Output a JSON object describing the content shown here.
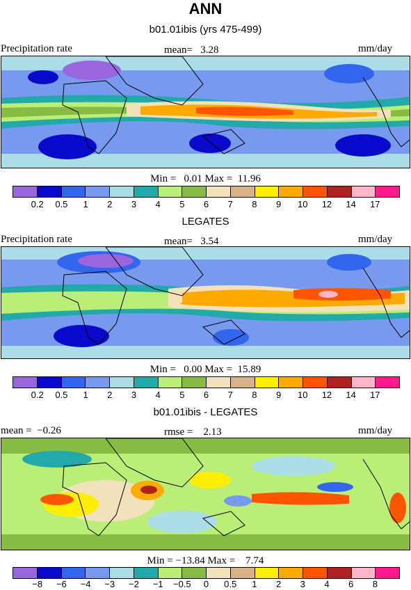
{
  "header": {
    "title": "ANN"
  },
  "palette": {
    "precip": [
      "#9966dd",
      "#0a0acc",
      "#3366ee",
      "#7799ee",
      "#aadde8",
      "#22aaaa",
      "#bbee77",
      "#88bb44",
      "#f2e2bb",
      "#d9b288",
      "#ffee00",
      "#ffaa00",
      "#ff5500",
      "#b02020",
      "#ffb6c8",
      "#ff1a8c"
    ],
    "diff": [
      "#9966dd",
      "#0a0acc",
      "#3366ee",
      "#7799ee",
      "#aadde8",
      "#22aaaa",
      "#bbee77",
      "#88bb44",
      "#f2e2bb",
      "#d9b288",
      "#ffee00",
      "#ffaa00",
      "#ff5500",
      "#b02020",
      "#ffb6c8",
      "#ff1a8c"
    ]
  },
  "panels": [
    {
      "subtitle": "b01.01ibis (yrs 475-499)",
      "left_label": "Precipitation rate",
      "center_label": "mean=   3.28",
      "right_label": "mm/day",
      "stats": "Min =   0.01 Max =  11.96",
      "ticks": [
        "0.2",
        "0.5",
        "1",
        "2",
        "3",
        "4",
        "5",
        "6",
        "7",
        "8",
        "9",
        "10",
        "12",
        "14",
        "17"
      ]
    },
    {
      "subtitle": "LEGATES",
      "left_label": "Precipitation rate",
      "center_label": "mean=   3.54",
      "right_label": "mm/day",
      "stats": "Min =   0.00 Max =  15.89",
      "ticks": [
        "0.2",
        "0.5",
        "1",
        "2",
        "3",
        "4",
        "5",
        "6",
        "7",
        "8",
        "9",
        "10",
        "12",
        "14",
        "17"
      ]
    },
    {
      "subtitle": "b01.01ibis - LEGATES",
      "left_label": "mean =  −0.26",
      "center_label": "rmse =    2.13",
      "right_label": "mm/day",
      "stats": "Min = −13.84 Max =    7.74",
      "ticks": [
        "−8",
        "−6",
        "−4",
        "−3",
        "−2",
        "−1",
        "−0.5",
        "0",
        "0.5",
        "1",
        "2",
        "3",
        "4",
        "6",
        "8"
      ]
    }
  ]
}
